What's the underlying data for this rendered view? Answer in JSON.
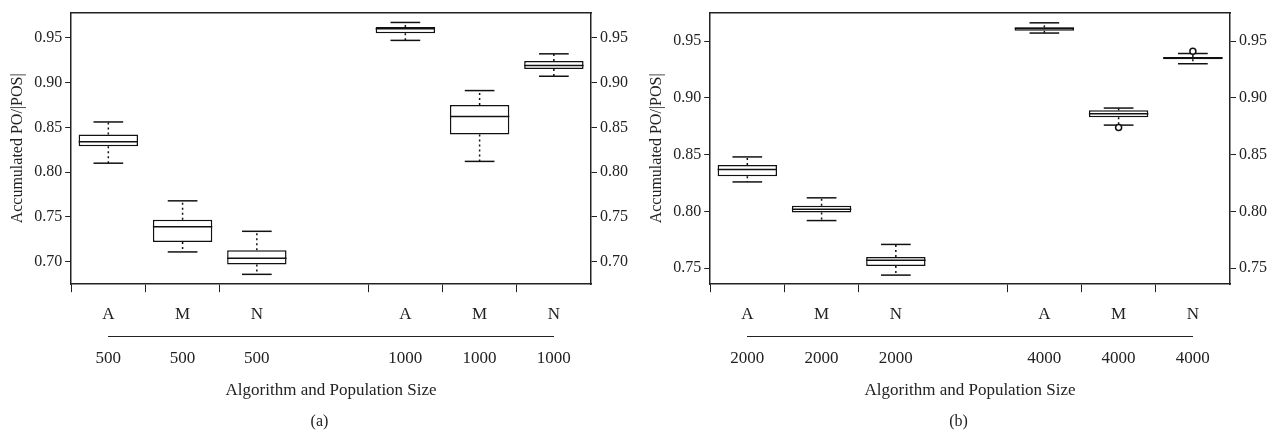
{
  "chart_data": [
    {
      "type": "box",
      "xlabel": "Algorithm and Population Size",
      "ylabel": "Accumulated PO/|POS|",
      "annotations": [
        "(a)"
      ],
      "grid": false,
      "categories": [
        "A 500",
        "M 500",
        "N 500",
        null,
        "A 1000",
        "M 1000",
        "N 1000"
      ],
      "boxes": [
        {
          "low": 0.81,
          "q1": 0.829,
          "median": 0.834,
          "q3": 0.842,
          "high": 0.856
        },
        {
          "low": 0.711,
          "q1": 0.722,
          "median": 0.739,
          "q3": 0.747,
          "high": 0.768
        },
        {
          "low": 0.686,
          "q1": 0.697,
          "median": 0.704,
          "q3": 0.713,
          "high": 0.734
        },
        null,
        {
          "low": 0.947,
          "q1": 0.955,
          "median": 0.96,
          "q3": 0.962,
          "high": 0.967
        },
        {
          "low": 0.812,
          "q1": 0.842,
          "median": 0.862,
          "q3": 0.875,
          "high": 0.891
        },
        {
          "low": 0.907,
          "q1": 0.915,
          "median": 0.919,
          "q3": 0.924,
          "high": 0.932
        }
      ],
      "ylim": [
        0.675,
        0.978
      ],
      "yticks": [
        {
          "value": 0.7,
          "label": "0.70"
        },
        {
          "value": 0.75,
          "label": "0.75"
        },
        {
          "value": 0.8,
          "label": "0.80"
        },
        {
          "value": 0.85,
          "label": "0.85"
        },
        {
          "value": 0.9,
          "label": "0.90"
        },
        {
          "value": 0.95,
          "label": "0.95"
        }
      ],
      "y2lim": [
        0.675,
        0.978
      ],
      "y2ticks": [
        {
          "value": 0.7,
          "label": "0.70"
        },
        {
          "value": 0.75,
          "label": "0.75"
        },
        {
          "value": 0.8,
          "label": "0.80"
        },
        {
          "value": 0.85,
          "label": "0.85"
        },
        {
          "value": 0.9,
          "label": "0.90"
        },
        {
          "value": 0.95,
          "label": "0.95"
        }
      ]
    },
    {
      "type": "box",
      "xlabel": "Algorithm and Population Size",
      "ylabel": "Accumulated PO/|POS|",
      "annotations": [
        "(b)"
      ],
      "grid": false,
      "categories": [
        "A 2000",
        "M 2000",
        "N 2000",
        null,
        "A 4000",
        "M 4000",
        "N 4000"
      ],
      "boxes": [
        {
          "low": 0.826,
          "q1": 0.831,
          "median": 0.837,
          "q3": 0.841,
          "high": 0.848
        },
        {
          "low": 0.792,
          "q1": 0.799,
          "median": 0.802,
          "q3": 0.805,
          "high": 0.812
        },
        {
          "low": 0.744,
          "q1": 0.752,
          "median": 0.757,
          "q3": 0.76,
          "high": 0.771
        },
        null,
        {
          "low": 0.957,
          "q1": 0.959,
          "median": 0.961,
          "q3": 0.962,
          "high": 0.966
        },
        {
          "low": 0.876,
          "q1": 0.883,
          "median": 0.886,
          "q3": 0.889,
          "high": 0.891,
          "outliers": [
            0.874
          ]
        },
        {
          "low": 0.93,
          "q1": 0.934,
          "median": 0.935,
          "q3": 0.936,
          "high": 0.939,
          "outliers": [
            0.941
          ]
        }
      ],
      "ylim": [
        0.736,
        0.975
      ],
      "yticks": [
        {
          "value": 0.75,
          "label": "0.75"
        },
        {
          "value": 0.8,
          "label": "0.80"
        },
        {
          "value": 0.85,
          "label": "0.85"
        },
        {
          "value": 0.9,
          "label": "0.90"
        },
        {
          "value": 0.95,
          "label": "0.95"
        }
      ],
      "y2lim": [
        0.736,
        0.975
      ],
      "y2ticks": [
        {
          "value": 0.75,
          "label": "0.75"
        },
        {
          "value": 0.8,
          "label": "0.80"
        },
        {
          "value": 0.85,
          "label": "0.85"
        },
        {
          "value": 0.9,
          "label": "0.90"
        },
        {
          "value": 0.95,
          "label": "0.95"
        }
      ]
    }
  ]
}
